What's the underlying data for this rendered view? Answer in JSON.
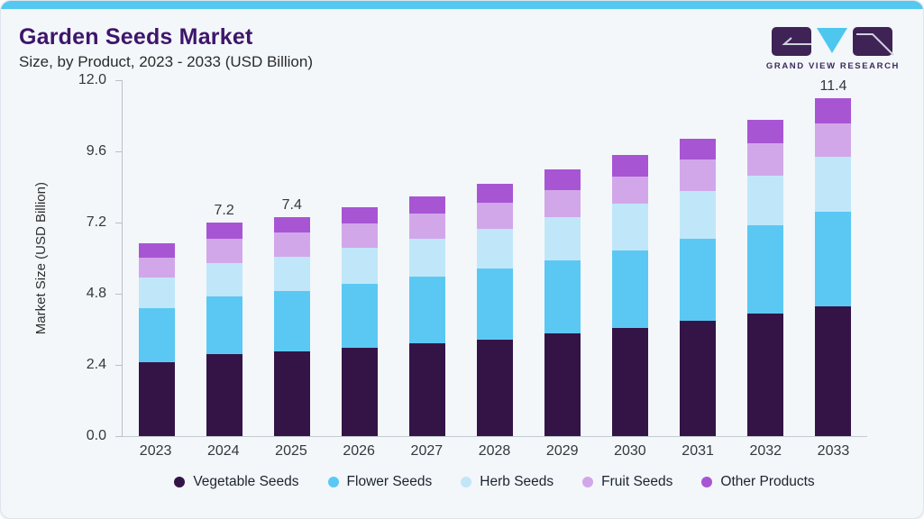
{
  "header": {
    "title": "Garden Seeds Market",
    "subtitle": "Size, by Product, 2023 - 2033 (USD Billion)",
    "logo_text": "GRAND VIEW RESEARCH"
  },
  "chart_data": {
    "type": "bar",
    "stacked": true,
    "title": "Garden Seeds Market Size, by Product, 2023 - 2033 (USD Billion)",
    "xlabel": "",
    "ylabel": "Market Size (USD Billion)",
    "ylim": [
      0,
      12
    ],
    "yticks": [
      "0.0",
      "2.4",
      "4.8",
      "7.2",
      "9.6",
      "12.0"
    ],
    "grid": false,
    "legend_position": "bottom",
    "categories": [
      "2023",
      "2024",
      "2025",
      "2026",
      "2027",
      "2028",
      "2029",
      "2030",
      "2031",
      "2032",
      "2033"
    ],
    "series": [
      {
        "name": "Vegetable Seeds",
        "color": "#341447",
        "values": [
          2.5,
          2.76,
          2.85,
          2.97,
          3.13,
          3.25,
          3.46,
          3.64,
          3.89,
          4.13,
          4.39
        ]
      },
      {
        "name": "Flower Seeds",
        "color": "#5bc8f4",
        "values": [
          1.82,
          1.96,
          2.03,
          2.15,
          2.26,
          2.39,
          2.48,
          2.63,
          2.76,
          2.98,
          3.18
        ]
      },
      {
        "name": "Herb Seeds",
        "color": "#c0e7f9",
        "values": [
          1.02,
          1.13,
          1.18,
          1.24,
          1.27,
          1.34,
          1.44,
          1.57,
          1.62,
          1.67,
          1.85
        ]
      },
      {
        "name": "Fruit Seeds",
        "color": "#d2a7e9",
        "values": [
          0.69,
          0.8,
          0.81,
          0.81,
          0.85,
          0.88,
          0.93,
          0.9,
          1.06,
          1.1,
          1.11
        ]
      },
      {
        "name": "Other Products",
        "color": "#a855d4",
        "values": [
          0.47,
          0.55,
          0.53,
          0.55,
          0.57,
          0.65,
          0.67,
          0.74,
          0.7,
          0.8,
          0.87
        ]
      }
    ],
    "totals": [
      6.5,
      7.2,
      7.4,
      7.72,
      8.08,
      8.51,
      8.98,
      9.48,
      10.03,
      10.68,
      11.4
    ],
    "total_labels": {
      "2024": "7.2",
      "2025": "7.4",
      "2033": "11.4"
    }
  },
  "theme": {
    "accent_bar": "#55c8f1",
    "card_background": "#f3f7fa",
    "title_color": "#3e156b",
    "axis_line": "#b9c1c9",
    "axis_text": "#33383d",
    "legend_text": "#1d2430",
    "logo_purple": "#3f2356",
    "logo_cyan": "#4ec7ef"
  }
}
